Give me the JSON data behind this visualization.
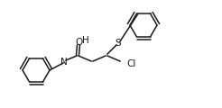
{
  "background_color": "#ffffff",
  "line_color": "#1a1a1a",
  "line_width": 1.1,
  "font_size": 6.5,
  "fig_width": 2.46,
  "fig_height": 1.2,
  "dpi": 100,
  "ring_r": 15,
  "xlim": [
    0,
    246
  ],
  "ylim": [
    0,
    120
  ]
}
